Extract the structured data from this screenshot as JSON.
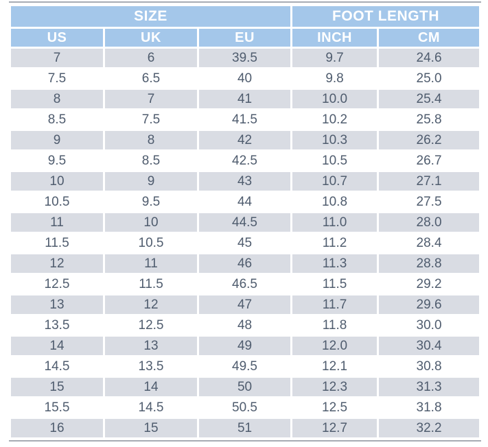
{
  "chart_data": {
    "type": "table",
    "group_headers": [
      "SIZE",
      "FOOT LENGTH"
    ],
    "columns": [
      "US",
      "UK",
      "EU",
      "INCH",
      "CM"
    ],
    "column_keys": [
      "us",
      "uk",
      "eu",
      "inch",
      "cm"
    ],
    "rows": [
      [
        "7",
        "6",
        "39.5",
        "9.7",
        "24.6"
      ],
      [
        "7.5",
        "6.5",
        "40",
        "9.8",
        "25.0"
      ],
      [
        "8",
        "7",
        "41",
        "10.0",
        "25.4"
      ],
      [
        "8.5",
        "7.5",
        "41.5",
        "10.2",
        "25.8"
      ],
      [
        "9",
        "8",
        "42",
        "10.3",
        "26.2"
      ],
      [
        "9.5",
        "8.5",
        "42.5",
        "10.5",
        "26.7"
      ],
      [
        "10",
        "9",
        "43",
        "10.7",
        "27.1"
      ],
      [
        "10.5",
        "9.5",
        "44",
        "10.8",
        "27.5"
      ],
      [
        "11",
        "10",
        "44.5",
        "11.0",
        "28.0"
      ],
      [
        "11.5",
        "10.5",
        "45",
        "11.2",
        "28.4"
      ],
      [
        "12",
        "11",
        "46",
        "11.3",
        "28.8"
      ],
      [
        "12.5",
        "11.5",
        "46.5",
        "11.5",
        "29.2"
      ],
      [
        "13",
        "12",
        "47",
        "11.7",
        "29.6"
      ],
      [
        "13.5",
        "12.5",
        "48",
        "11.8",
        "30.0"
      ],
      [
        "14",
        "13",
        "49",
        "12.0",
        "30.4"
      ],
      [
        "14.5",
        "13.5",
        "49.5",
        "12.1",
        "30.8"
      ],
      [
        "15",
        "14",
        "50",
        "12.3",
        "31.3"
      ],
      [
        "15.5",
        "14.5",
        "50.5",
        "12.5",
        "31.8"
      ],
      [
        "16",
        "15",
        "51",
        "12.7",
        "32.2"
      ]
    ],
    "layout": {
      "row_striping": "odd-rows-shaded",
      "header_rows": 2
    },
    "colors": {
      "header_bg": "#a4c7ea",
      "header_text": "#ffffff",
      "alt_row_bg": "#d9dce3",
      "row_bg": "#ffffff",
      "body_text": "#4f5c6e",
      "edge_line": "#a6abb3"
    }
  }
}
